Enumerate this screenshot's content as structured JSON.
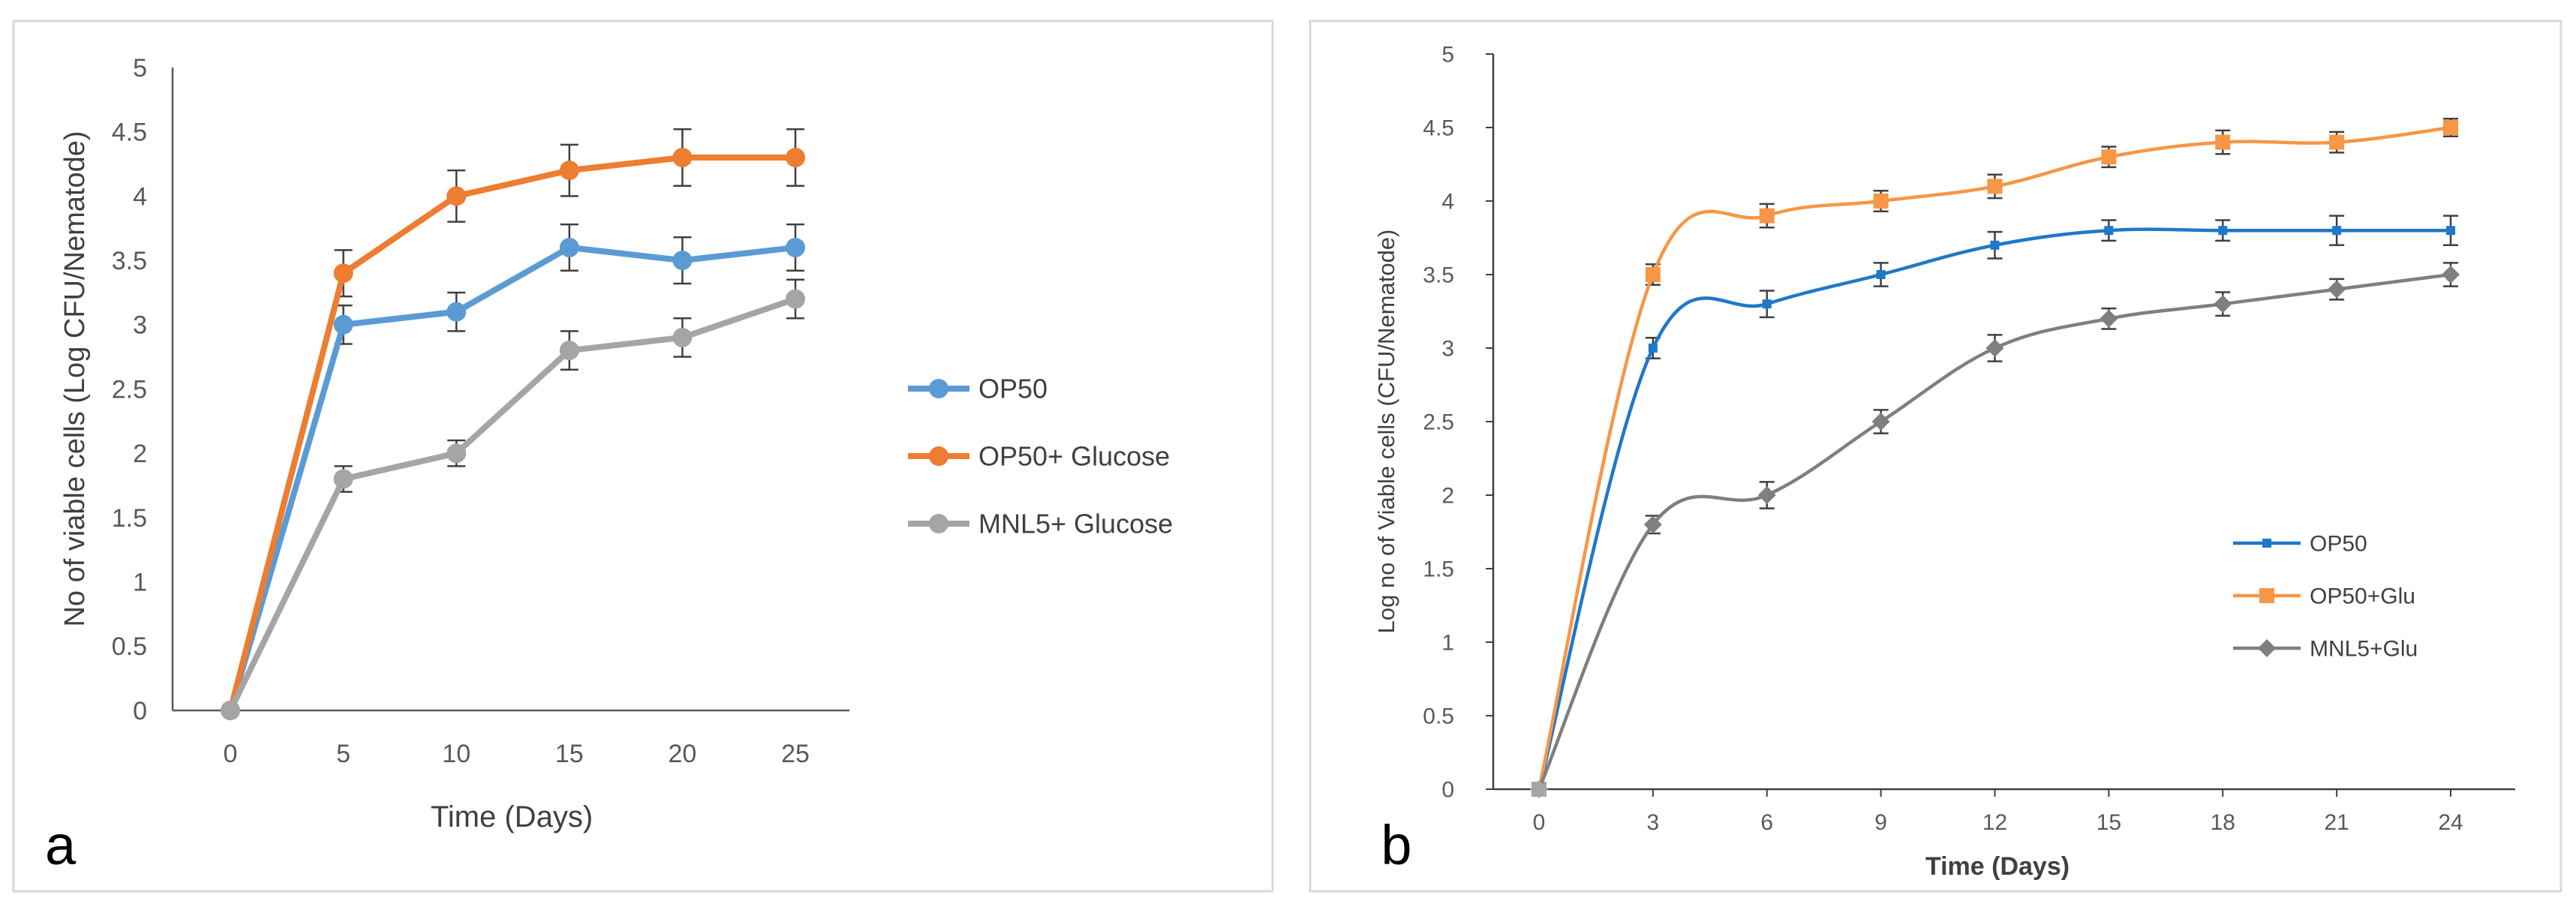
{
  "chart_data": [
    {
      "type": "line",
      "panel_label": "a",
      "title": "",
      "xlabel": "Time (Days)",
      "ylabel": "No of viable cells (Log CFU/Nematode)",
      "x": [
        0,
        5,
        10,
        15,
        20,
        25
      ],
      "x_tick_labels": [
        "0",
        "5",
        "10",
        "15",
        "20",
        "25"
      ],
      "ylim": [
        0,
        5
      ],
      "y_ticks": [
        0,
        0.5,
        1,
        1.5,
        2,
        2.5,
        3,
        3.5,
        4,
        4.5,
        5
      ],
      "y_tick_labels": [
        "0",
        "0.5",
        "1",
        "1.5",
        "2",
        "2.5",
        "3",
        "3.5",
        "4",
        "4.5",
        "5"
      ],
      "legend_position": "right",
      "grid": false,
      "series": [
        {
          "name": "OP50",
          "color": "#5b9bd5",
          "marker": "circle",
          "smooth": false,
          "values": [
            0,
            3.0,
            3.1,
            3.6,
            3.5,
            3.6
          ],
          "errors": [
            0,
            0.15,
            0.15,
            0.18,
            0.18,
            0.18
          ]
        },
        {
          "name": "OP50+ Glucose",
          "color": "#ed7d31",
          "marker": "circle",
          "smooth": false,
          "values": [
            0,
            3.4,
            4.0,
            4.2,
            4.3,
            4.3
          ],
          "errors": [
            0,
            0.18,
            0.2,
            0.2,
            0.22,
            0.22
          ]
        },
        {
          "name": "MNL5+ Glucose",
          "color": "#a5a5a5",
          "marker": "circle",
          "smooth": false,
          "values": [
            0,
            1.8,
            2.0,
            2.8,
            2.9,
            3.2
          ],
          "errors": [
            0,
            0.1,
            0.1,
            0.15,
            0.15,
            0.15
          ]
        }
      ]
    },
    {
      "type": "line",
      "panel_label": "b",
      "title": "",
      "xlabel": "Time (Days)",
      "ylabel": "Log no of Viable cells (CFU/Nematode)",
      "x": [
        0,
        3,
        6,
        9,
        12,
        15,
        18,
        21,
        24
      ],
      "x_tick_labels": [
        "0",
        "3",
        "6",
        "9",
        "12",
        "15",
        "18",
        "21",
        "24"
      ],
      "ylim": [
        0,
        5
      ],
      "y_ticks": [
        0,
        0.5,
        1,
        1.5,
        2,
        2.5,
        3,
        3.5,
        4,
        4.5,
        5
      ],
      "y_tick_labels": [
        "0",
        "0.5",
        "1",
        "1.5",
        "2",
        "2.5",
        "3",
        "3.5",
        "4",
        "4.5",
        "5"
      ],
      "legend_position": "bottom-right",
      "grid": false,
      "series": [
        {
          "name": "OP50",
          "color": "#1f78c8",
          "marker": "square-small",
          "smooth": true,
          "values": [
            0,
            3.0,
            3.3,
            3.5,
            3.7,
            3.8,
            3.8,
            3.8,
            3.8
          ],
          "errors": [
            0,
            0.07,
            0.09,
            0.08,
            0.09,
            0.07,
            0.07,
            0.1,
            0.1
          ]
        },
        {
          "name": "OP50+Glu",
          "color": "#f79646",
          "marker": "square",
          "smooth": true,
          "values": [
            0,
            3.5,
            3.9,
            4.0,
            4.1,
            4.3,
            4.4,
            4.4,
            4.5
          ],
          "errors": [
            0,
            0.07,
            0.08,
            0.07,
            0.08,
            0.07,
            0.08,
            0.07,
            0.06
          ]
        },
        {
          "name": "MNL5+Glu",
          "color": "#7f7f7f",
          "marker": "diamond",
          "smooth": true,
          "values": [
            0,
            1.8,
            2.0,
            2.5,
            3.0,
            3.2,
            3.3,
            3.4,
            3.5
          ],
          "errors": [
            0,
            0.06,
            0.09,
            0.08,
            0.09,
            0.07,
            0.08,
            0.07,
            0.08
          ]
        }
      ]
    }
  ]
}
